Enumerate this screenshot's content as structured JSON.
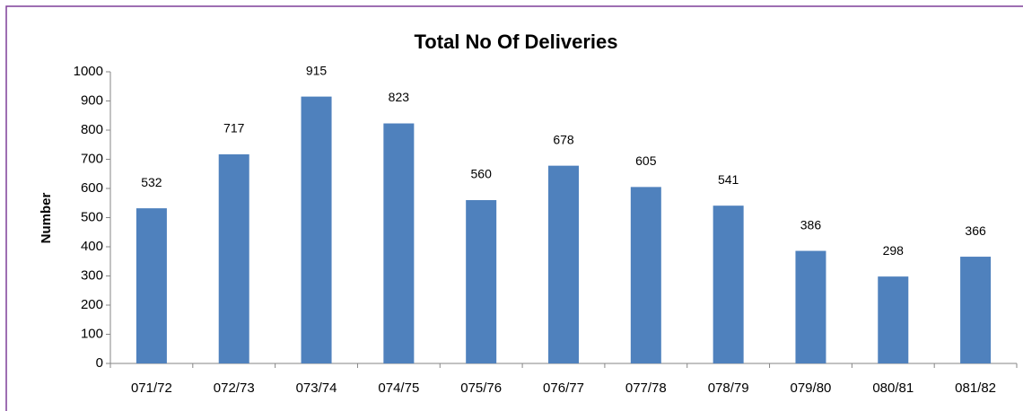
{
  "chart_data": {
    "type": "bar",
    "title": "Total No Of Deliveries",
    "y_label": "Number",
    "categories": [
      "071/72",
      "072/73",
      "073/74",
      "074/75",
      "075/76",
      "076/77",
      "077/78",
      "078/79",
      "079/80",
      "080/81",
      "081/82"
    ],
    "values": [
      532,
      717,
      915,
      823,
      560,
      678,
      605,
      541,
      386,
      298,
      366
    ],
    "color": "#4f81bd",
    "ylim": [
      0,
      1000
    ],
    "yticks": [
      0,
      100,
      200,
      300,
      400,
      500,
      600,
      700,
      800,
      900,
      1000
    ],
    "grid": false
  }
}
